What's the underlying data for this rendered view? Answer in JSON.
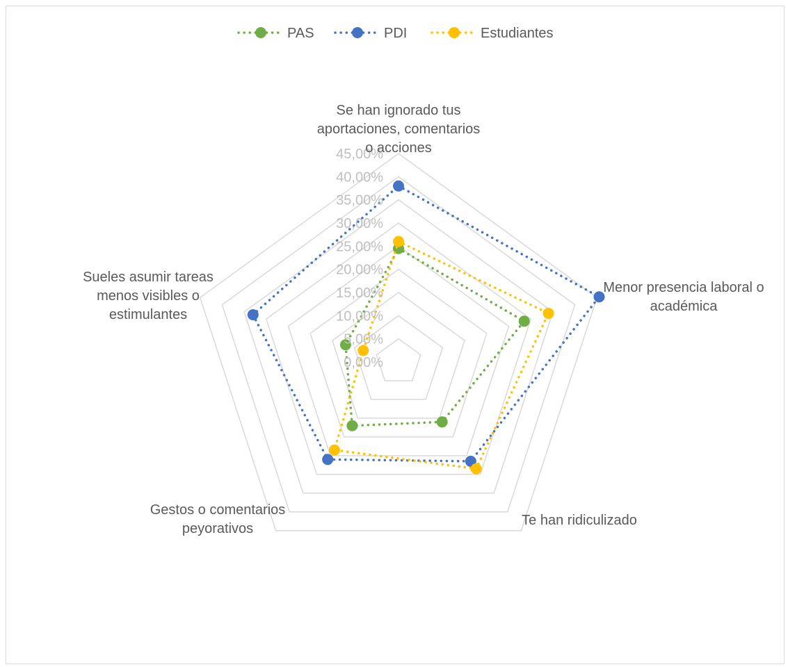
{
  "chart_data": {
    "type": "radar",
    "title": "",
    "categories": [
      [
        "Se han ignorado tus",
        "aportaciones, comentarios",
        "o acciones"
      ],
      [
        "Menor presencia laboral o",
        "académica"
      ],
      [
        "Te han ridiculizado"
      ],
      [
        "Gestos o comentarios",
        "peyorativos"
      ],
      [
        "Sueles asumir tareas",
        "menos visibles o",
        "estimulantes"
      ]
    ],
    "rlim": [
      0,
      45
    ],
    "ticks": [
      "0,00%",
      "5,00%",
      "10,00%",
      "15,00%",
      "20,00%",
      "25,00%",
      "30,00%",
      "35,00%",
      "40,00%",
      "45,00%"
    ],
    "tick_values": [
      0,
      5,
      10,
      15,
      20,
      25,
      30,
      35,
      40,
      45
    ],
    "grid": true,
    "legend_position": "top",
    "series": [
      {
        "name": "PAS",
        "color": "#70ad47",
        "values": [
          24.5,
          28.5,
          16.0,
          17.0,
          12.0
        ]
      },
      {
        "name": "PDI",
        "color": "#4472c4",
        "values": [
          38.0,
          45.5,
          26.5,
          26.0,
          33.0
        ]
      },
      {
        "name": "Estudiantes",
        "color": "#ffc000",
        "values": [
          26.0,
          34.0,
          28.5,
          23.5,
          8.0
        ]
      }
    ]
  }
}
